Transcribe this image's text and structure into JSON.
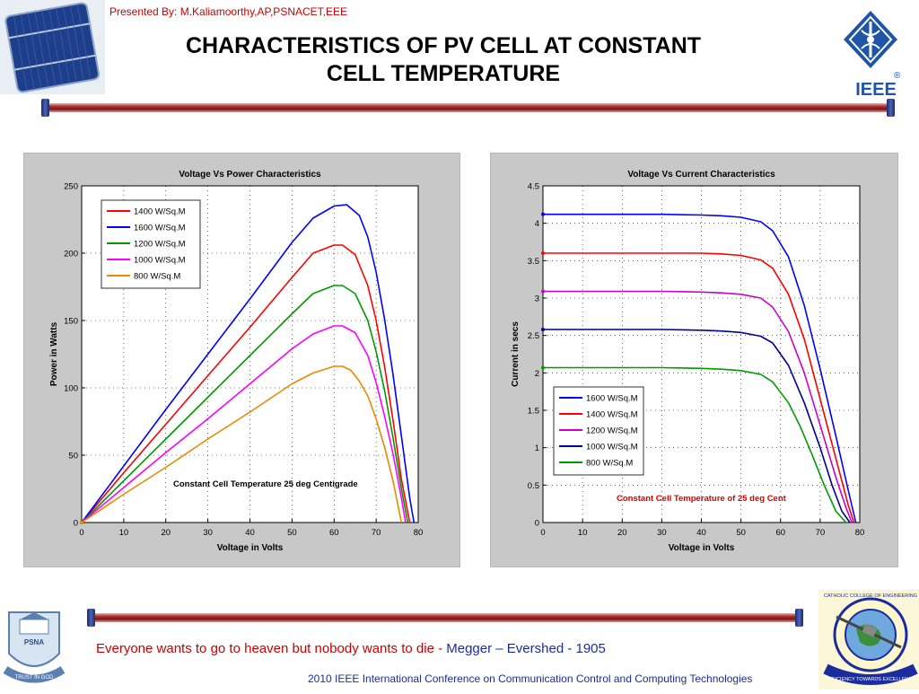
{
  "header": {
    "presenter": "Presented By: M.Kaliamoorthy,AP,PSNACET,EEE",
    "title_line1": "CHARACTERISTICS OF PV CELL AT CONSTANT",
    "title_line2": "CELL TEMPERATURE",
    "logo_text": "IEEE",
    "logo_mark": "®"
  },
  "footer": {
    "quote": "Everyone wants to go to heaven but nobody wants to die - ",
    "author": "Megger – Evershed - 1905",
    "conference": "2010 IEEE International Conference on Communication Control and Computing Technologies",
    "left_logo_text": "PSNA",
    "left_logo_motto": "TRUST IN GOD",
    "right_logo_ring": "CATHOLIC COLLEGE OF ENGINEERING",
    "right_logo_motto": "EFFICIENCY TOWARDS EXCELLENCE"
  },
  "chart_data": [
    {
      "type": "line",
      "title": "Voltage Vs Power Characteristics",
      "xlabel": "Voltage in Volts",
      "ylabel": "Power in Watts",
      "xlim": [
        0,
        80
      ],
      "ylim": [
        0,
        250
      ],
      "xticks": [
        0,
        10,
        20,
        30,
        40,
        50,
        60,
        70,
        80
      ],
      "yticks": [
        0,
        50,
        100,
        150,
        200,
        250
      ],
      "grid": true,
      "legend_position": "top-left",
      "annotation": "Constant Cell Temperature 25 deg Centigrade",
      "annotation_color": "#000000",
      "series": [
        {
          "name": "1400 W/Sq.M",
          "color": "#ff0000",
          "x": [
            0,
            10,
            20,
            30,
            40,
            50,
            55,
            60,
            62,
            65,
            68,
            70,
            72,
            74,
            76,
            78
          ],
          "y": [
            0,
            37,
            73,
            109,
            145,
            182,
            200,
            206,
            206,
            199,
            176,
            150,
            116,
            76,
            32,
            0
          ]
        },
        {
          "name": "1600 W/Sq.M",
          "color": "#0000ff",
          "x": [
            0,
            10,
            20,
            30,
            40,
            50,
            55,
            60,
            63,
            66,
            68,
            70,
            72,
            74,
            76,
            78,
            79
          ],
          "y": [
            0,
            42,
            84,
            125,
            166,
            208,
            226,
            235,
            236,
            228,
            212,
            186,
            151,
            110,
            64,
            18,
            0
          ]
        },
        {
          "name": "1200 W/Sq.M",
          "color": "#009900",
          "x": [
            0,
            10,
            20,
            30,
            40,
            50,
            55,
            60,
            62,
            65,
            68,
            70,
            72,
            74,
            76,
            77.5
          ],
          "y": [
            0,
            31,
            62,
            93,
            124,
            155,
            170,
            176,
            176,
            170,
            150,
            127,
            98,
            63,
            25,
            0
          ]
        },
        {
          "name": "1000 W/Sq.M",
          "color": "#ff00ff",
          "x": [
            0,
            10,
            20,
            30,
            40,
            50,
            55,
            60,
            62,
            65,
            68,
            70,
            72,
            74,
            76,
            77
          ],
          "y": [
            0,
            26,
            52,
            77,
            103,
            129,
            140,
            146,
            146,
            141,
            124,
            104,
            79,
            51,
            18,
            0
          ]
        },
        {
          "name": "800  W/Sq.M",
          "color": "#ee8800",
          "x": [
            0,
            10,
            20,
            30,
            40,
            50,
            55,
            60,
            62,
            64,
            66,
            68,
            70,
            72,
            74,
            76
          ],
          "y": [
            0,
            21,
            41,
            62,
            82,
            103,
            111,
            116,
            116,
            113,
            105,
            94,
            77,
            56,
            31,
            0
          ]
        }
      ]
    },
    {
      "type": "line",
      "title": "Voltage Vs Current Characteristics",
      "xlabel": "Voltage in Volts",
      "ylabel": "Current in secs",
      "xlim": [
        0,
        80
      ],
      "ylim": [
        0,
        4.5
      ],
      "xticks": [
        0,
        10,
        20,
        30,
        40,
        50,
        60,
        70,
        80
      ],
      "yticks": [
        0,
        0.5,
        1,
        1.5,
        2,
        2.5,
        3,
        3.5,
        4,
        4.5
      ],
      "grid": true,
      "legend_position": "bottom-left",
      "annotation": "Constant Cell Temperature of 25 deg Cent",
      "annotation_color": "#dd0000",
      "series": [
        {
          "name": "1600 W/Sq.M",
          "color": "#0000ff",
          "x": [
            0,
            10,
            20,
            30,
            40,
            45,
            50,
            55,
            58,
            62,
            66,
            70,
            74,
            77,
            79
          ],
          "y": [
            4.12,
            4.12,
            4.12,
            4.12,
            4.11,
            4.1,
            4.08,
            4.02,
            3.9,
            3.55,
            2.9,
            2.05,
            1.15,
            0.45,
            0
          ]
        },
        {
          "name": "1400 W/Sq.M",
          "color": "#ff0000",
          "x": [
            0,
            10,
            20,
            30,
            40,
            45,
            50,
            55,
            58,
            62,
            66,
            70,
            74,
            77,
            78.5
          ],
          "y": [
            3.6,
            3.6,
            3.6,
            3.6,
            3.6,
            3.59,
            3.57,
            3.51,
            3.4,
            3.05,
            2.45,
            1.65,
            0.85,
            0.25,
            0
          ]
        },
        {
          "name": "1200 W/Sq.M",
          "color": "#cc00cc",
          "x": [
            0,
            10,
            20,
            30,
            40,
            45,
            50,
            55,
            58,
            62,
            66,
            70,
            74,
            76.5,
            78
          ],
          "y": [
            3.09,
            3.09,
            3.09,
            3.09,
            3.08,
            3.07,
            3.05,
            3.0,
            2.88,
            2.55,
            2.0,
            1.3,
            0.6,
            0.2,
            0
          ]
        },
        {
          "name": "1000 W/Sq.M",
          "color": "#000099",
          "x": [
            0,
            10,
            20,
            30,
            40,
            45,
            50,
            55,
            58,
            62,
            66,
            70,
            73,
            75.5,
            77.5
          ],
          "y": [
            2.58,
            2.58,
            2.58,
            2.58,
            2.57,
            2.56,
            2.54,
            2.49,
            2.4,
            2.1,
            1.6,
            1.0,
            0.5,
            0.15,
            0
          ]
        },
        {
          "name": "800  W/Sq.M",
          "color": "#009900",
          "x": [
            0,
            10,
            20,
            30,
            40,
            45,
            50,
            55,
            58,
            62,
            65,
            68,
            71,
            74,
            76.5
          ],
          "y": [
            2.07,
            2.07,
            2.07,
            2.07,
            2.06,
            2.05,
            2.03,
            1.98,
            1.88,
            1.6,
            1.28,
            0.9,
            0.5,
            0.15,
            0
          ]
        }
      ]
    }
  ]
}
